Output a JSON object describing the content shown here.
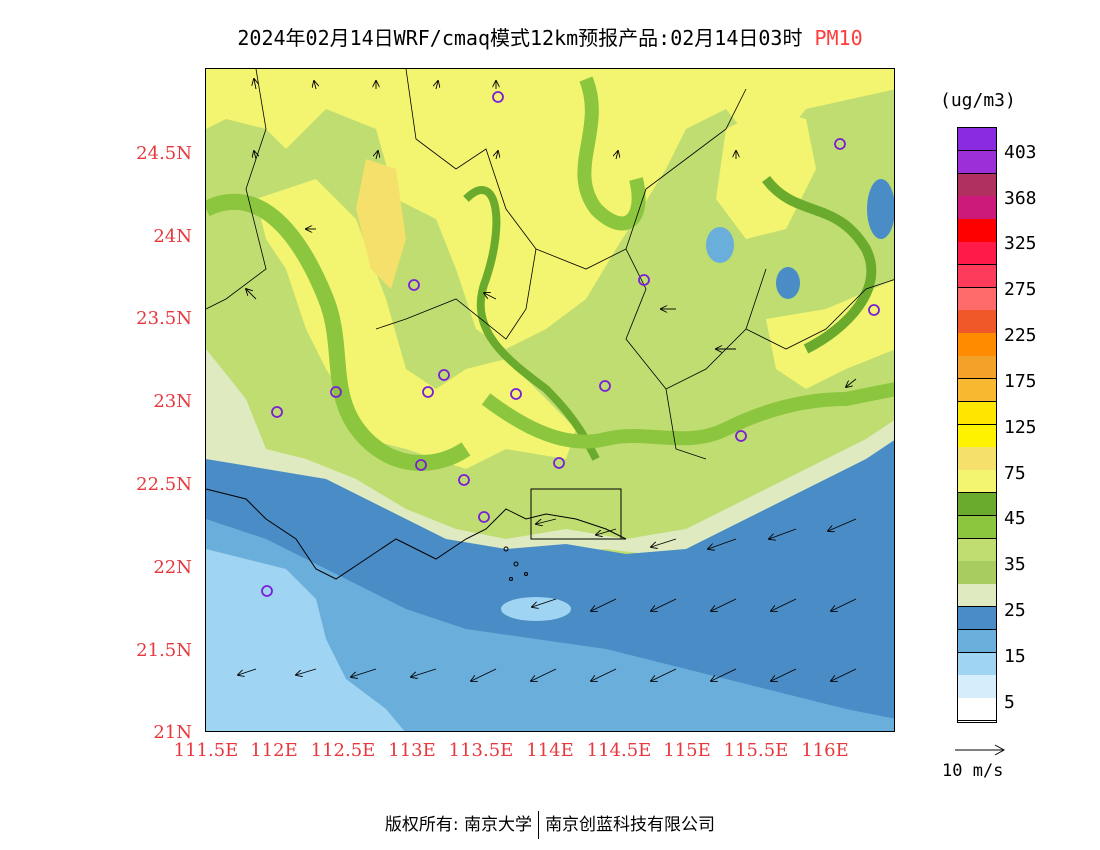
{
  "title": {
    "main": "2024年02月14日WRF/cmaq模式12km预报产品:02月14日03时",
    "variable": "PM10",
    "variable_color": "#ff3b3b"
  },
  "axes": {
    "y_labels": [
      "24.5N",
      "24N",
      "23.5N",
      "23N",
      "22.5N",
      "22N",
      "21.5N",
      "21N"
    ],
    "x_labels": [
      "111.5E",
      "112E",
      "112.5E",
      "113E",
      "113.5E",
      "114E",
      "114.5E",
      "115E",
      "115.5E",
      "116E"
    ],
    "label_color": "#e8373d"
  },
  "colorbar": {
    "unit": "(ug/m3)",
    "labels": [
      "403",
      "368",
      "325",
      "275",
      "225",
      "175",
      "125",
      "75",
      "45",
      "35",
      "25",
      "15",
      "5"
    ],
    "colors_top_to_bottom": [
      "#8a2be2",
      "#9b30d9",
      "#b03060",
      "#cc1a7a",
      "#ff0000",
      "#ff1a4a",
      "#ff3b5c",
      "#ff6a6a",
      "#f0582a",
      "#ff8c00",
      "#f4a12a",
      "#f8b830",
      "#ffe600",
      "#fff200",
      "#f4e06a",
      "#f3f570",
      "#6aab2e",
      "#8cc63f",
      "#c0dd72",
      "#a8cc60",
      "#dfeac0",
      "#4a8cc6",
      "#6aaedc",
      "#9fd4f2",
      "#d6eefb",
      "#ffffff"
    ]
  },
  "map_colors": {
    "yellow": "#f3f570",
    "light_yellow": "#f4e06a",
    "green_light": "#c0dd72",
    "green": "#8cc63f",
    "green_dark": "#6aab2e",
    "pale_green": "#dfeac0",
    "blue_dark": "#4a8cc6",
    "blue": "#6aaedc",
    "blue_light": "#9fd4f2"
  },
  "vector_reference": "10 m/s",
  "footer": {
    "left": "版权所有: 南京大学",
    "right": "南京创蓝科技有限公司"
  }
}
